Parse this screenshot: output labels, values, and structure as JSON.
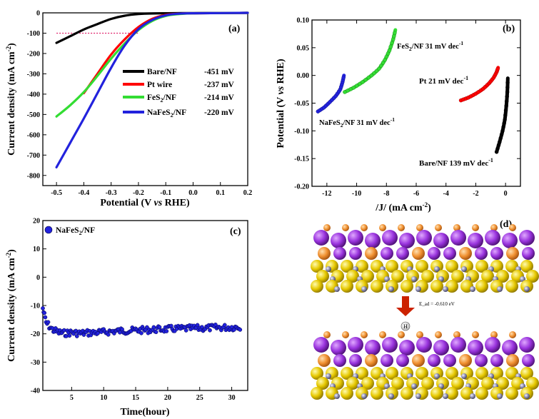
{
  "chart_data": [
    {
      "id": "a",
      "type": "line",
      "panel_label": "(a)",
      "xlabel": "Potential (V vs RHE)",
      "xlabel_parts": [
        "Potential (V ",
        "vs",
        " RHE)"
      ],
      "ylabel": "Current density (mA cm-2)",
      "ylabel_parts": [
        "Current density (mA cm",
        "-2",
        ")"
      ],
      "xlim": [
        -0.55,
        0.2
      ],
      "ylim": [
        -850,
        0
      ],
      "xticks": [
        -0.5,
        -0.4,
        -0.3,
        -0.2,
        -0.1,
        0.0,
        0.1,
        0.2
      ],
      "xtick_labels": [
        "-0.5",
        "-0.4",
        "-0.3",
        "-0.2",
        "-0.1",
        "0.0",
        "0.1",
        "0.2"
      ],
      "yticks": [
        0,
        -100,
        -200,
        -300,
        -400,
        -500,
        -600,
        -700,
        -800
      ],
      "ytick_labels": [
        "0",
        "-100",
        "-200",
        "-300",
        "-400",
        "-500",
        "-600",
        "-700",
        "-800"
      ],
      "reference_line": {
        "y": -100,
        "color": "#e0206a"
      },
      "legend": [
        {
          "name": "Bare/NF",
          "sub": "",
          "tail": "",
          "value": "-451 mV",
          "color": "#000000"
        },
        {
          "name": "Pt wire",
          "sub": "",
          "tail": "",
          "value": "-237 mV",
          "color": "#ff0000"
        },
        {
          "name": "FeS",
          "sub": "2",
          "tail": "/NF",
          "value": "-214 mV",
          "color": "#33dd33"
        },
        {
          "name": "NaFeS",
          "sub": "2",
          "tail": "/NF",
          "value": "-220 mV",
          "color": "#2222dd"
        }
      ],
      "series": [
        {
          "name": "Bare/NF",
          "color": "#000000",
          "x": [
            -0.5,
            -0.45,
            -0.4,
            -0.35,
            -0.3,
            -0.25,
            -0.2,
            -0.15,
            -0.1,
            0.0,
            0.1,
            0.2
          ],
          "y": [
            -148,
            -115,
            -82,
            -55,
            -30,
            -14,
            -6,
            -3,
            -2,
            -1,
            -1,
            0
          ]
        },
        {
          "name": "Pt wire",
          "color": "#ff0000",
          "x": [
            -0.4,
            -0.35,
            -0.3,
            -0.25,
            -0.2,
            -0.15,
            -0.1,
            -0.05,
            0.0,
            0.1,
            0.2
          ],
          "y": [
            -395,
            -300,
            -205,
            -130,
            -70,
            -30,
            -10,
            -4,
            -2,
            -1,
            0
          ]
        },
        {
          "name": "FeS2/NF",
          "color": "#33dd33",
          "x": [
            -0.5,
            -0.45,
            -0.4,
            -0.35,
            -0.3,
            -0.25,
            -0.2,
            -0.15,
            -0.1,
            -0.05,
            0.0,
            0.1,
            0.2
          ],
          "y": [
            -510,
            -455,
            -390,
            -310,
            -225,
            -150,
            -85,
            -40,
            -15,
            -6,
            -2,
            -1,
            0
          ]
        },
        {
          "name": "NaFeS2/NF",
          "color": "#2222dd",
          "x": [
            -0.5,
            -0.45,
            -0.4,
            -0.35,
            -0.3,
            -0.25,
            -0.2,
            -0.15,
            -0.1,
            -0.05,
            0.0,
            0.1,
            0.2
          ],
          "y": [
            -760,
            -640,
            -520,
            -395,
            -270,
            -160,
            -80,
            -35,
            -12,
            -4,
            -2,
            -1,
            0
          ]
        }
      ]
    },
    {
      "id": "b",
      "type": "line",
      "panel_label": "(b)",
      "xlabel": "/J/ (mA cm-2)",
      "xlabel_parts": [
        "/J/ (mA cm",
        "-2",
        ")"
      ],
      "ylabel": "Potential (V vs RHE)",
      "ylabel_parts": [
        "Potential (V ",
        "vs",
        " RHE)"
      ],
      "xlim": [
        -13,
        1
      ],
      "ylim": [
        -0.2,
        0.1
      ],
      "xticks": [
        -12,
        -10,
        -8,
        -6,
        -4,
        -2,
        0
      ],
      "xtick_labels": [
        "-12",
        "-10",
        "-8",
        "-6",
        "-4",
        "-2",
        "0"
      ],
      "yticks": [
        0.1,
        0.05,
        0.0,
        -0.05,
        -0.1,
        -0.15,
        -0.2
      ],
      "ytick_labels": [
        "0.10",
        "0.05",
        "0.00",
        "-0.05",
        "-0.10",
        "-0.15",
        "-0.20"
      ],
      "annotations": [
        {
          "pre": "FeS",
          "sub": "2",
          "post": "/NF 31 mV dec",
          "sup": "-1",
          "color": "#33dd33"
        },
        {
          "pre": "Pt 21 mV dec",
          "sub": "",
          "post": "",
          "sup": "-1",
          "color": "#ff0000"
        },
        {
          "pre": "NaFeS",
          "sub": "2",
          "post": "/NF 31 mV dec",
          "sup": "-1",
          "color": "#2222dd"
        },
        {
          "pre": "Bare/NF 139 mV dec",
          "sub": "",
          "post": "",
          "sup": "-1",
          "color": "#000000"
        }
      ],
      "series": [
        {
          "name": "NaFeS2/NF",
          "color": "#2222dd",
          "x": [
            -12.6,
            -12.2,
            -11.8,
            -11.4,
            -11.1,
            -10.95,
            -10.85
          ],
          "y": [
            -0.065,
            -0.058,
            -0.048,
            -0.037,
            -0.025,
            -0.012,
            0.0
          ]
        },
        {
          "name": "FeS2/NF",
          "color": "#33dd33",
          "x": [
            -10.8,
            -10.2,
            -9.6,
            -9.0,
            -8.5,
            -8.1,
            -7.8,
            -7.55,
            -7.4
          ],
          "y": [
            -0.03,
            -0.022,
            -0.012,
            0.0,
            0.012,
            0.028,
            0.045,
            0.065,
            0.082
          ]
        },
        {
          "name": "Pt",
          "color": "#ff0000",
          "x": [
            -3.0,
            -2.5,
            -2.0,
            -1.5,
            -1.1,
            -0.8,
            -0.6,
            -0.5
          ],
          "y": [
            -0.045,
            -0.04,
            -0.033,
            -0.024,
            -0.014,
            -0.004,
            0.006,
            0.014
          ]
        },
        {
          "name": "Bare/NF",
          "color": "#000000",
          "x": [
            -0.6,
            -0.4,
            -0.2,
            -0.05,
            0.05,
            0.12,
            0.15
          ],
          "y": [
            -0.138,
            -0.12,
            -0.1,
            -0.08,
            -0.055,
            -0.03,
            -0.005
          ]
        }
      ]
    },
    {
      "id": "c",
      "type": "scatter",
      "panel_label": "(c)",
      "xlabel": "Time(hour)",
      "ylabel": "Current density (mA cm-2)",
      "ylabel_parts": [
        "Current density (mA cm",
        "-2",
        ")"
      ],
      "xlim": [
        0.5,
        32.5
      ],
      "ylim": [
        -40,
        20
      ],
      "xticks": [
        5,
        10,
        15,
        20,
        25,
        30
      ],
      "xtick_labels": [
        "5",
        "10",
        "15",
        "20",
        "25",
        "30"
      ],
      "yticks": [
        20,
        10,
        0,
        -10,
        -20,
        -30,
        -40
      ],
      "ytick_labels": [
        "20",
        "10",
        "0",
        "-10",
        "-20",
        "-30",
        "-40"
      ],
      "legend": [
        {
          "name": "NaFeS",
          "sub": "2",
          "tail": "/NF",
          "color": "#2222dd"
        }
      ],
      "series": [
        {
          "name": "NaFeS2/NF",
          "color": "#2222dd",
          "x": [
            0.5,
            1,
            2,
            3,
            4,
            5,
            6,
            8,
            10,
            12,
            15,
            18,
            20,
            22,
            25,
            28,
            30,
            31.5
          ],
          "y": [
            -11,
            -16,
            -18.5,
            -19.5,
            -19.8,
            -19.5,
            -19.8,
            -19.6,
            -19.4,
            -19,
            -18.8,
            -18.5,
            -18.3,
            -18.2,
            -18,
            -17.8,
            -17.7,
            -17.6
          ]
        }
      ]
    }
  ],
  "panel_d": {
    "label": "(d)",
    "energy_label": "E_ad = -0.610 eV",
    "atom_label": "H"
  }
}
